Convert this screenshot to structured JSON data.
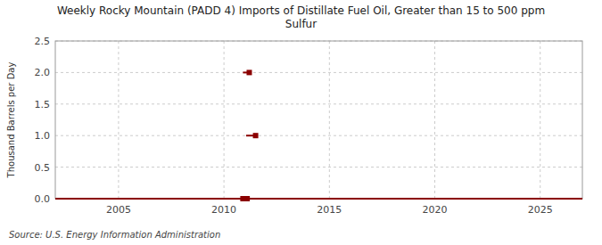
{
  "chart_data": {
    "type": "line",
    "title": "Weekly Rocky Mountain (PADD 4) Imports of Distillate Fuel Oil, Greater than 15 to 500 ppm\nSulfur",
    "y_label": "Thousand Barrels per Day",
    "annotations": [
      "Source: U.S. Energy Information Administration"
    ],
    "color": "#8b0000",
    "grid": true,
    "xlim": [
      2002.0,
      2027.0
    ],
    "ylim": [
      0.0,
      2.5
    ],
    "xticks": [
      2005,
      2010,
      2015,
      2020,
      2025
    ],
    "yticks": [
      {
        "value": 0.0,
        "label": "0.0"
      },
      0.5,
      {
        "value": 1.0,
        "label": "1.0"
      },
      1.5,
      {
        "value": 2.0,
        "label": "2.0"
      },
      2.5
    ],
    "series": [
      {
        "type": "line",
        "x": [
          2002.0,
          2027.0
        ],
        "values": [
          0.0,
          0.0
        ]
      },
      {
        "type": "line",
        "x": [
          2010.9,
          2011.15
        ],
        "values": [
          2.0,
          2.0
        ]
      },
      {
        "type": "line",
        "x": [
          2011.05,
          2011.55
        ],
        "values": [
          1.0,
          1.0
        ]
      },
      {
        "type": "scatter",
        "marker": "square",
        "x": [
          2011.2,
          2011.5,
          2010.9,
          2011.1
        ],
        "values": [
          2.0,
          1.0,
          0.0,
          0.0
        ]
      }
    ]
  }
}
